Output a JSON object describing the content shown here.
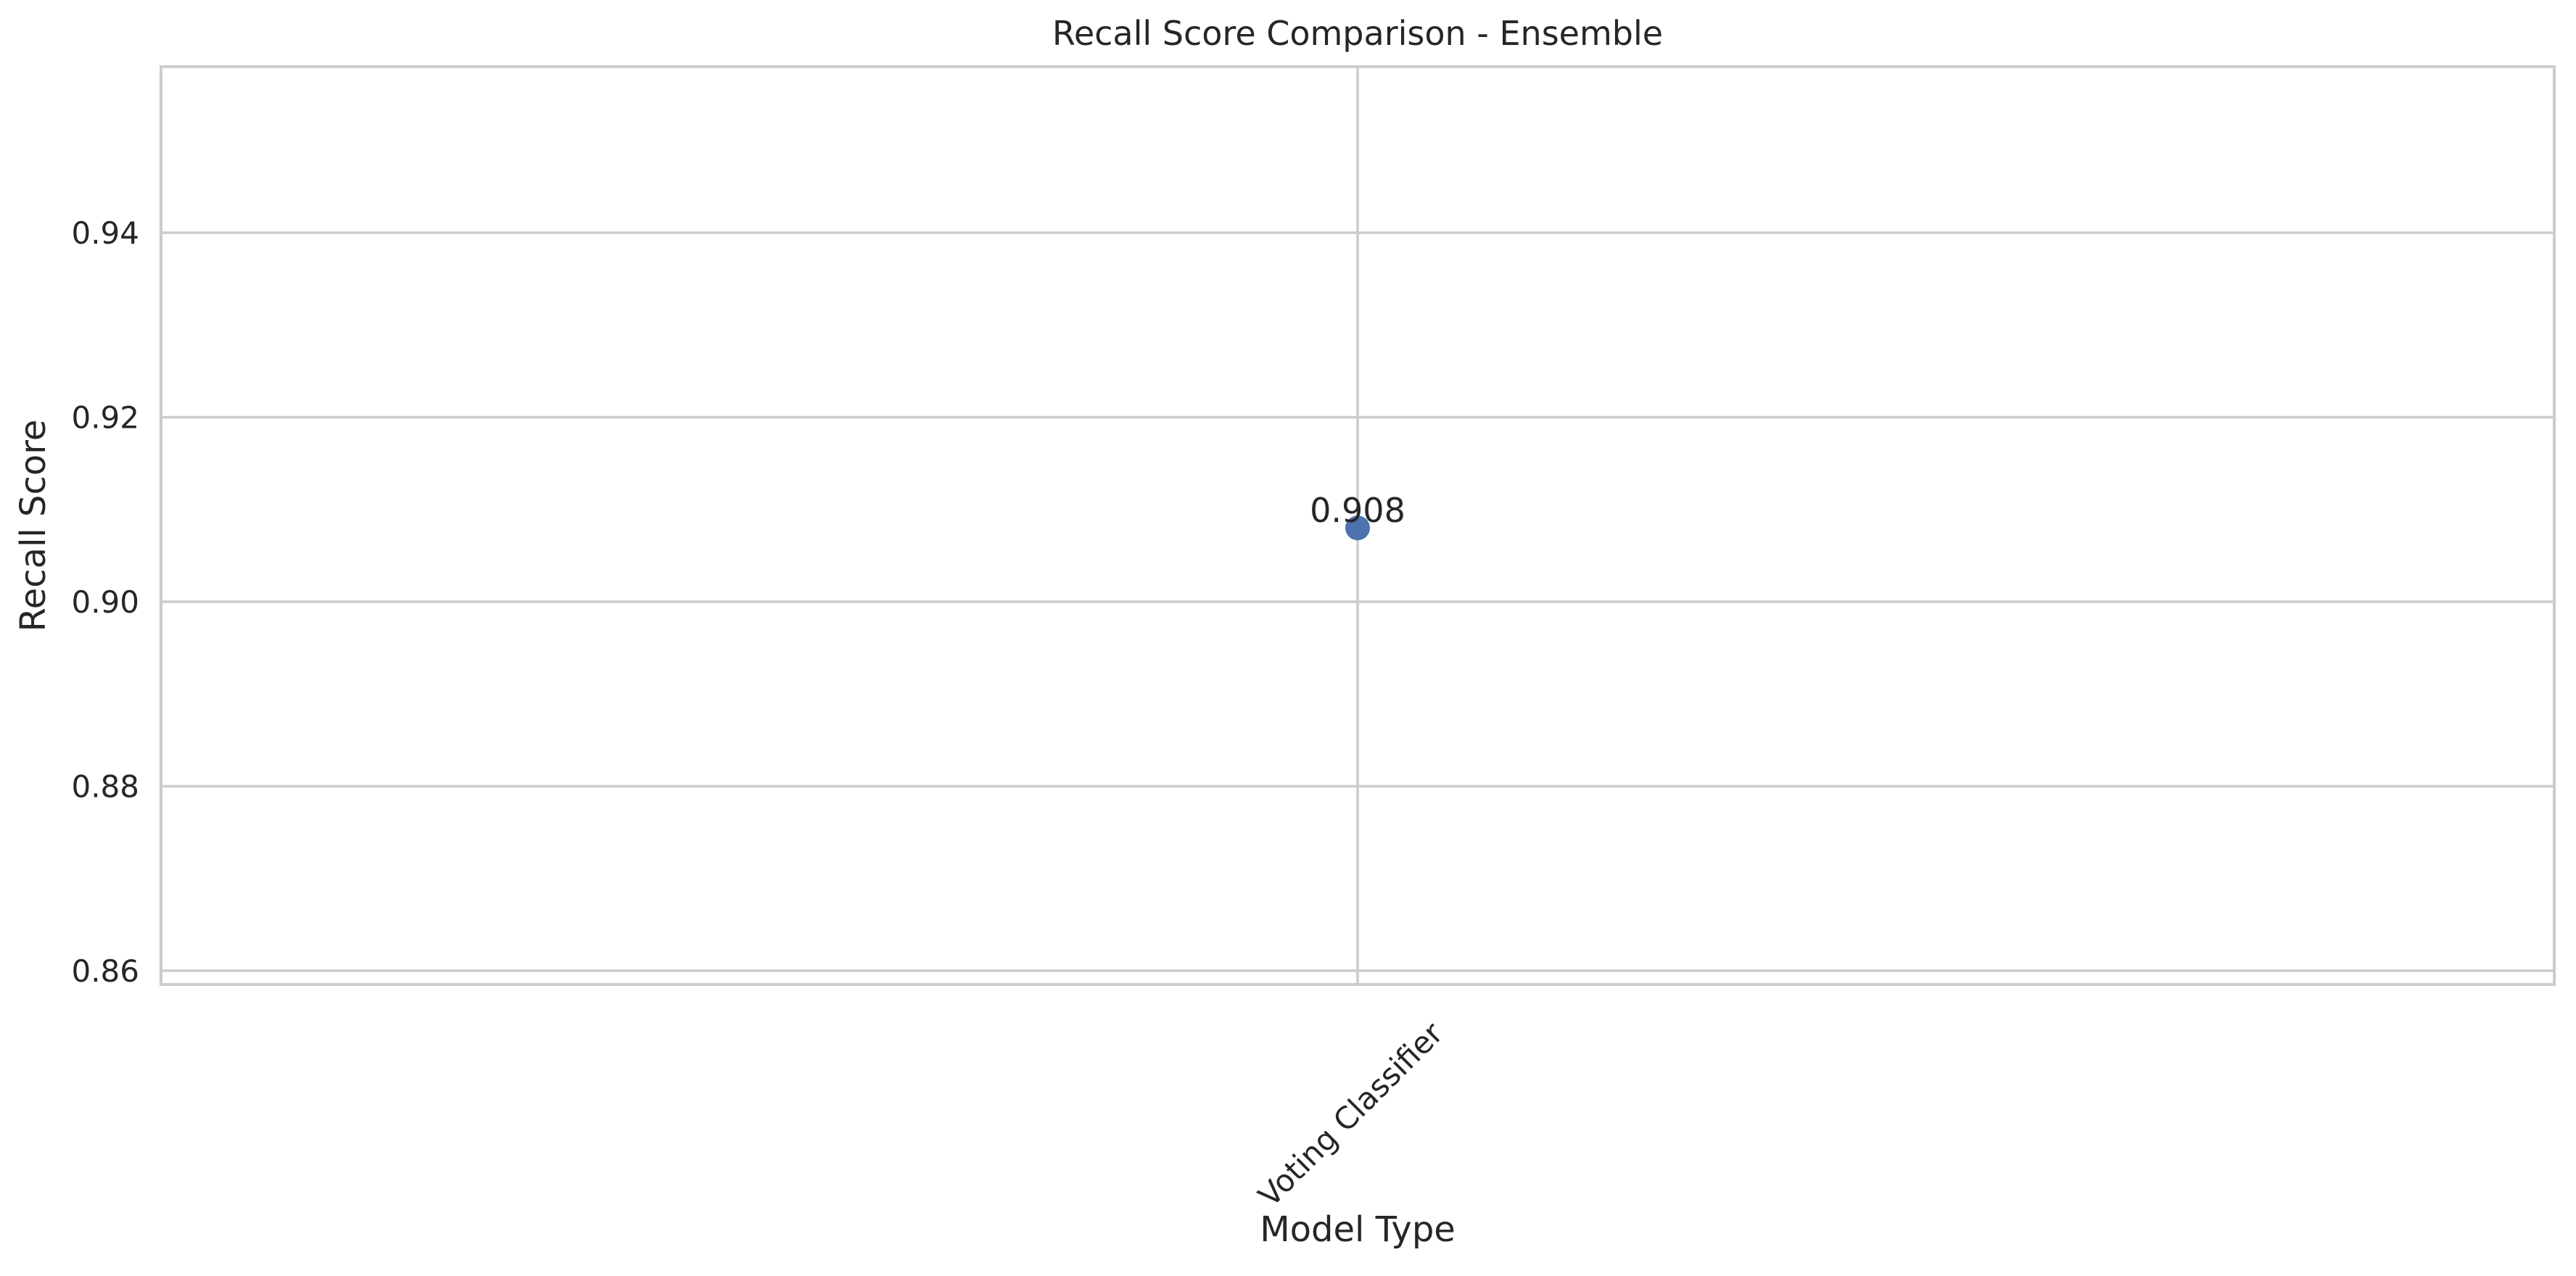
{
  "chart_data": {
    "type": "scatter",
    "title": "Recall Score Comparison - Ensemble",
    "xlabel": "Model Type",
    "ylabel": "Recall Score",
    "categories": [
      "Voting Classifier"
    ],
    "values": [
      0.908
    ],
    "data_labels": [
      "0.908"
    ],
    "ylim": [
      0.8585,
      0.958
    ],
    "yticks": [
      0.86,
      0.88,
      0.9,
      0.92,
      0.94
    ],
    "ytick_labels": [
      "0.86",
      "0.88",
      "0.90",
      "0.92",
      "0.94"
    ],
    "grid": true,
    "legend": "none",
    "xtick_rotation_deg": 45
  },
  "colors": {
    "marker": "#4c72b0",
    "grid": "#cccccc",
    "frame": "#cccccc",
    "text": "#262626",
    "background": "#ffffff"
  }
}
